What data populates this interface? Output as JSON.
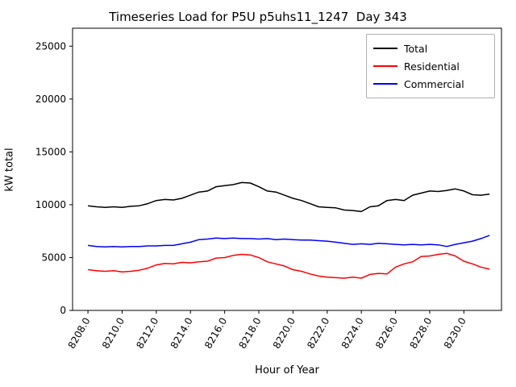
{
  "chart_data": {
    "type": "line",
    "title": "Timeseries Load for P5U p5uhs11_1247  Day 343",
    "xlabel": "Hour of Year",
    "ylabel": "kW total",
    "xlim": [
      8207.1,
      8232.2
    ],
    "ylim": [
      0,
      26700
    ],
    "grid": false,
    "legend_position": "upper right",
    "x_ticks": [
      {
        "value": 8208,
        "label": "8208.0"
      },
      {
        "value": 8210,
        "label": "8210.0"
      },
      {
        "value": 8212,
        "label": "8212.0"
      },
      {
        "value": 8214,
        "label": "8214.0"
      },
      {
        "value": 8216,
        "label": "8216.0"
      },
      {
        "value": 8218,
        "label": "8218.0"
      },
      {
        "value": 8220,
        "label": "8220.0"
      },
      {
        "value": 8222,
        "label": "8222.0"
      },
      {
        "value": 8224,
        "label": "8224.0"
      },
      {
        "value": 8226,
        "label": "8226.0"
      },
      {
        "value": 8228,
        "label": "8228.0"
      },
      {
        "value": 8230,
        "label": "8230.0"
      }
    ],
    "y_ticks": [
      {
        "value": 0,
        "label": "0"
      },
      {
        "value": 5000,
        "label": "5000"
      },
      {
        "value": 10000,
        "label": "10000"
      },
      {
        "value": 15000,
        "label": "15000"
      },
      {
        "value": 20000,
        "label": "20000"
      },
      {
        "value": 25000,
        "label": "25000"
      }
    ],
    "x": [
      8208.0,
      8208.5,
      8209.0,
      8209.5,
      8210.0,
      8210.5,
      8211.0,
      8211.5,
      8212.0,
      8212.5,
      8213.0,
      8213.5,
      8214.0,
      8214.5,
      8215.0,
      8215.5,
      8216.0,
      8216.5,
      8217.0,
      8217.5,
      8218.0,
      8218.5,
      8219.0,
      8219.5,
      8220.0,
      8220.5,
      8221.0,
      8221.5,
      8222.0,
      8222.5,
      8223.0,
      8223.5,
      8224.0,
      8224.5,
      8225.0,
      8225.5,
      8226.0,
      8226.5,
      8227.0,
      8227.5,
      8228.0,
      8228.5,
      8229.0,
      8229.5,
      8230.0,
      8230.5,
      8231.0,
      8231.5
    ],
    "series": [
      {
        "name": "Total",
        "color": "#000000",
        "values": [
          9900,
          9800,
          9750,
          9800,
          9750,
          9850,
          9900,
          10100,
          10400,
          10500,
          10450,
          10600,
          10900,
          11200,
          11300,
          11700,
          11800,
          11900,
          12100,
          12050,
          11700,
          11300,
          11200,
          10900,
          10600,
          10400,
          10100,
          9800,
          9750,
          9700,
          9500,
          9450,
          9350,
          9800,
          9900,
          10400,
          10500,
          10400,
          10900,
          11100,
          11300,
          11250,
          11350,
          11500,
          11300,
          10950,
          10900,
          11000
        ]
      },
      {
        "name": "Residential",
        "color": "#ff0000",
        "values": [
          3850,
          3750,
          3700,
          3750,
          3650,
          3700,
          3800,
          4000,
          4300,
          4450,
          4400,
          4550,
          4500,
          4600,
          4650,
          4950,
          5000,
          5200,
          5300,
          5250,
          5000,
          4600,
          4400,
          4200,
          3850,
          3700,
          3450,
          3250,
          3150,
          3100,
          3050,
          3150,
          3050,
          3400,
          3500,
          3450,
          4100,
          4400,
          4600,
          5100,
          5150,
          5300,
          5400,
          5150,
          4650,
          4400,
          4100,
          3900
        ]
      },
      {
        "name": "Commercial",
        "color": "#0000ff",
        "values": [
          6150,
          6050,
          6000,
          6050,
          6000,
          6050,
          6050,
          6100,
          6100,
          6150,
          6150,
          6300,
          6450,
          6700,
          6750,
          6850,
          6800,
          6850,
          6800,
          6800,
          6750,
          6800,
          6700,
          6750,
          6700,
          6650,
          6650,
          6600,
          6550,
          6450,
          6350,
          6250,
          6300,
          6250,
          6350,
          6300,
          6250,
          6200,
          6250,
          6200,
          6250,
          6200,
          6050,
          6250,
          6400,
          6550,
          6800,
          7100
        ]
      }
    ]
  }
}
